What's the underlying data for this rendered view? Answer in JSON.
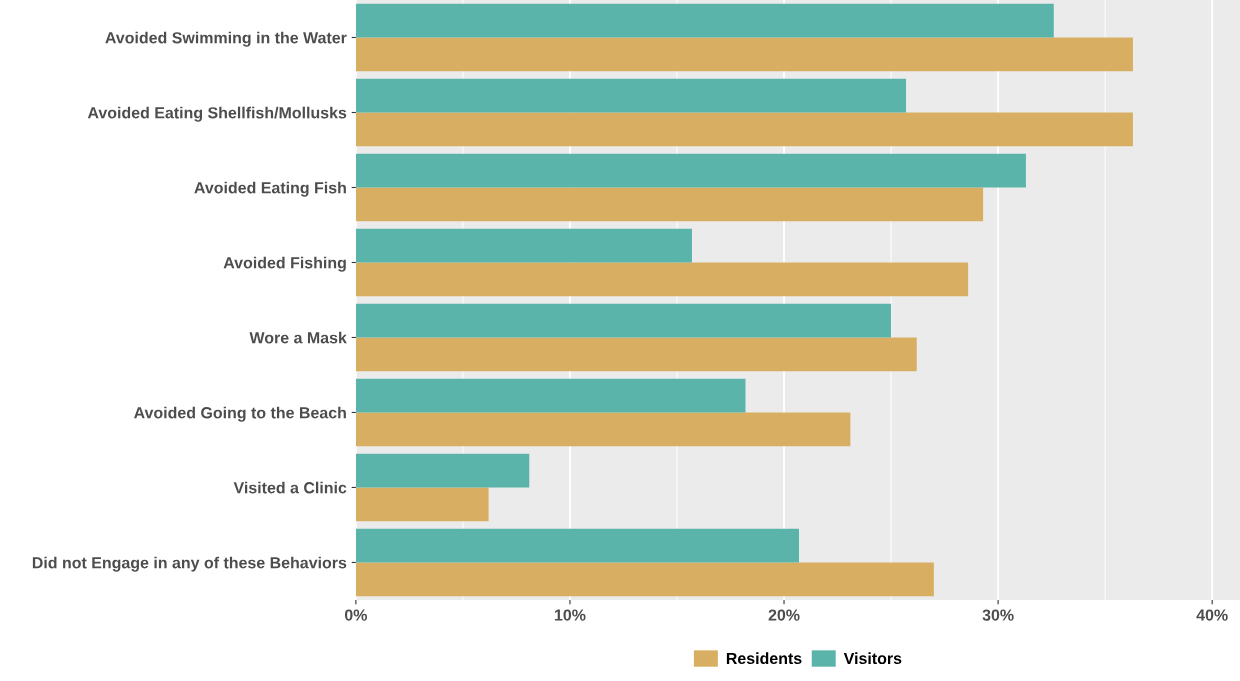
{
  "chart_data": {
    "type": "bar",
    "orientation": "horizontal",
    "categories": [
      "Avoided Swimming in the Water",
      "Avoided Eating Shellfish/Mollusks",
      "Avoided Eating Fish",
      "Avoided Fishing",
      "Wore a Mask",
      "Avoided Going to the Beach",
      "Visited a Clinic",
      "Did not Engage in any of these Behaviors"
    ],
    "series": [
      {
        "name": "Residents",
        "color": "#d8af62",
        "values": [
          36.3,
          36.3,
          29.3,
          28.6,
          26.2,
          23.1,
          6.2,
          27.0
        ]
      },
      {
        "name": "Visitors",
        "color": "#5ab4aa",
        "values": [
          32.6,
          25.7,
          31.3,
          15.7,
          25.0,
          18.2,
          8.1,
          20.7
        ]
      }
    ],
    "xlim": [
      0,
      41.3
    ],
    "xticks": [
      {
        "value": 0,
        "label": "0%"
      },
      {
        "value": 5,
        "label": null
      },
      {
        "value": 10,
        "label": "10%"
      },
      {
        "value": 15,
        "label": null
      },
      {
        "value": 20,
        "label": "20%"
      },
      {
        "value": 25,
        "label": null
      },
      {
        "value": 30,
        "label": "30%"
      },
      {
        "value": 35,
        "label": null
      },
      {
        "value": 40,
        "label": "40%"
      }
    ],
    "grid": "x",
    "legend": "bottom"
  }
}
